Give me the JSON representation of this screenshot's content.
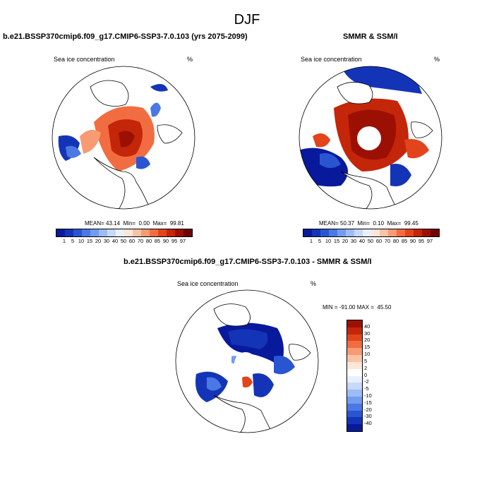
{
  "figure": {
    "season": "DJF"
  },
  "panel_model": {
    "title": "b.e21.BSSP370cmip6.f09_g17.CMIP6-SSP3-7.0.103 (yrs 2075-2099)",
    "variable": "Sea ice concentration",
    "units": "%",
    "stats": {
      "mean_label": "MEAN=",
      "mean": "43.14",
      "min_label": "Min=",
      "min": "0.00",
      "max_label": "Max=",
      "max": "99.81"
    }
  },
  "panel_obs": {
    "title": "SMMR & SSM/I",
    "variable": "Sea ice concentration",
    "units": "%",
    "stats": {
      "mean_label": "MEAN=",
      "mean": "50.37",
      "min_label": "Min=",
      "min": "0.10",
      "max_label": "Max=",
      "max": "99.45"
    }
  },
  "panel_diff": {
    "title": "b.e21.BSSP370cmip6.f09_g17.CMIP6-SSP3-7.0.103 - SMMR & SSM/I",
    "variable": "Sea ice concentration",
    "units": "%",
    "stats": {
      "min_label": "MIN =",
      "min": "-91.00",
      "max_label": "MAX =",
      "max": "45.50"
    }
  },
  "colorbar_conc": {
    "labels": [
      "1",
      "5",
      "10",
      "15",
      "20",
      "30",
      "40",
      "50",
      "60",
      "70",
      "80",
      "85",
      "90",
      "95",
      "97"
    ],
    "colors": [
      "#08199c",
      "#1434b8",
      "#2a55d2",
      "#4a78e4",
      "#739bf0",
      "#9cbcf7",
      "#c6d9fb",
      "#e8f0fd",
      "#fde6d8",
      "#fbc3a6",
      "#f89a72",
      "#f26c41",
      "#e2441c",
      "#c4260a",
      "#9c1004",
      "#700300"
    ]
  },
  "colorbar_diff": {
    "labels": [
      "40",
      "30",
      "20",
      "15",
      "10",
      "5",
      "2",
      "0",
      "-2",
      "-5",
      "-10",
      "-15",
      "-20",
      "-30",
      "-40"
    ],
    "colors": [
      "#9c1004",
      "#c4260a",
      "#e2441c",
      "#f26c41",
      "#f89a72",
      "#fbc3a6",
      "#fde6d8",
      "#ffffff",
      "#e8f0fd",
      "#c6d9fb",
      "#9cbcf7",
      "#739bf0",
      "#4a78e4",
      "#2a55d2",
      "#1434b8",
      "#08199c"
    ]
  }
}
